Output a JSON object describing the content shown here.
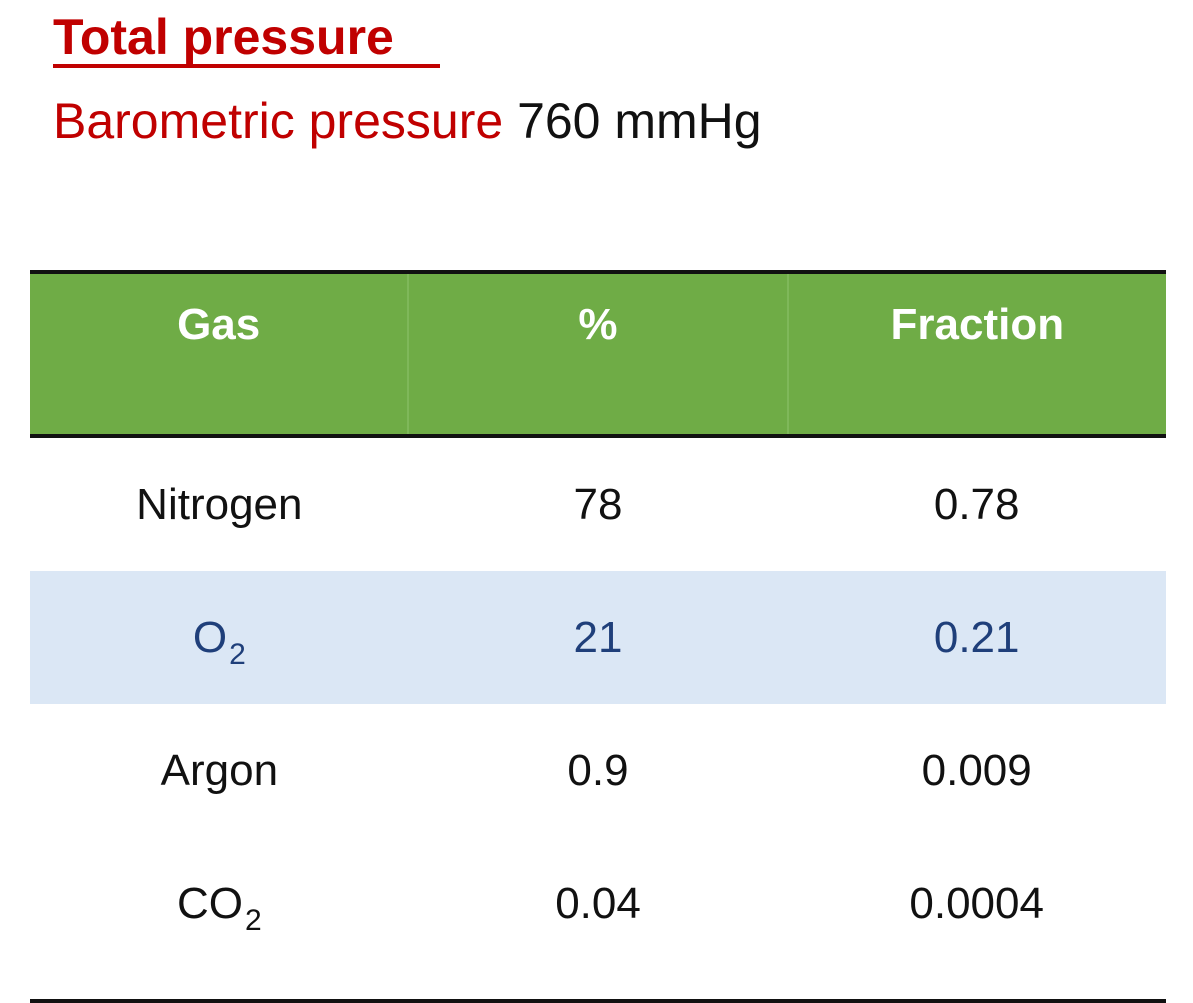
{
  "heading": "Total pressure",
  "subheading": {
    "label": "Barometric pressure",
    "value": "760 mmHg"
  },
  "table": {
    "headers": [
      "Gas",
      "%",
      "Fraction"
    ],
    "rows": [
      {
        "gas": "Nitrogen",
        "gas_sub": "",
        "percent": "78",
        "fraction": "0.78",
        "highlight": false
      },
      {
        "gas": "O",
        "gas_sub": "2",
        "percent": "21",
        "fraction": "0.21",
        "highlight": true
      },
      {
        "gas": "Argon",
        "gas_sub": "",
        "percent": "0.9",
        "fraction": "0.009",
        "highlight": false
      },
      {
        "gas": "CO",
        "gas_sub": "2",
        "percent": "0.04",
        "fraction": "0.0004",
        "highlight": false
      }
    ]
  },
  "colors": {
    "heading": "#c00000",
    "header_fill": "#6fac46",
    "highlight_fill": "#dbe7f5",
    "highlight_text": "#1f3f7a"
  }
}
